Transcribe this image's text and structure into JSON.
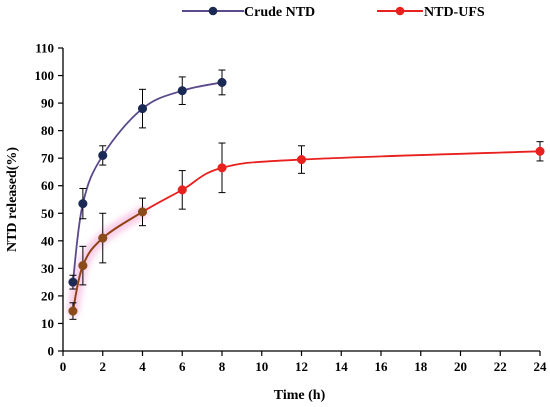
{
  "chart_data": {
    "type": "line",
    "xlabel": "Time (h)",
    "ylabel": "NTD released(%)",
    "xlim": [
      0,
      24
    ],
    "ylim": [
      0,
      110
    ],
    "xticks": [
      "0",
      "2",
      "4",
      "6",
      "8",
      "10",
      "12",
      "14",
      "16",
      "18",
      "20",
      "22",
      "24"
    ],
    "yticks": [
      "0",
      "10",
      "20",
      "30",
      "40",
      "50",
      "60",
      "70",
      "80",
      "90",
      "100",
      "110"
    ],
    "grid": false,
    "legend_position": "top-center",
    "series": [
      {
        "name": "Crude NTD",
        "color": "#5a4a8c",
        "marker_color": "#1a2a55",
        "x": [
          0.5,
          1,
          2,
          4,
          6,
          8
        ],
        "y": [
          25,
          53.5,
          71,
          88,
          94.5,
          97.5
        ],
        "err": [
          2.5,
          5.5,
          3.5,
          7,
          5,
          4.5
        ]
      },
      {
        "name": "NTD-UFS",
        "color": "#e8201e",
        "marker_color": "#e8201e",
        "early_color": "#8b4513",
        "early_marker_color": "#8b4a1a",
        "x": [
          0.5,
          1,
          2,
          4,
          6,
          8,
          12,
          24
        ],
        "y": [
          14.5,
          31,
          41,
          50.5,
          58.5,
          66.5,
          69.5,
          72.5
        ],
        "err": [
          3,
          7,
          9,
          5,
          7,
          9,
          5,
          3.5
        ]
      }
    ]
  }
}
